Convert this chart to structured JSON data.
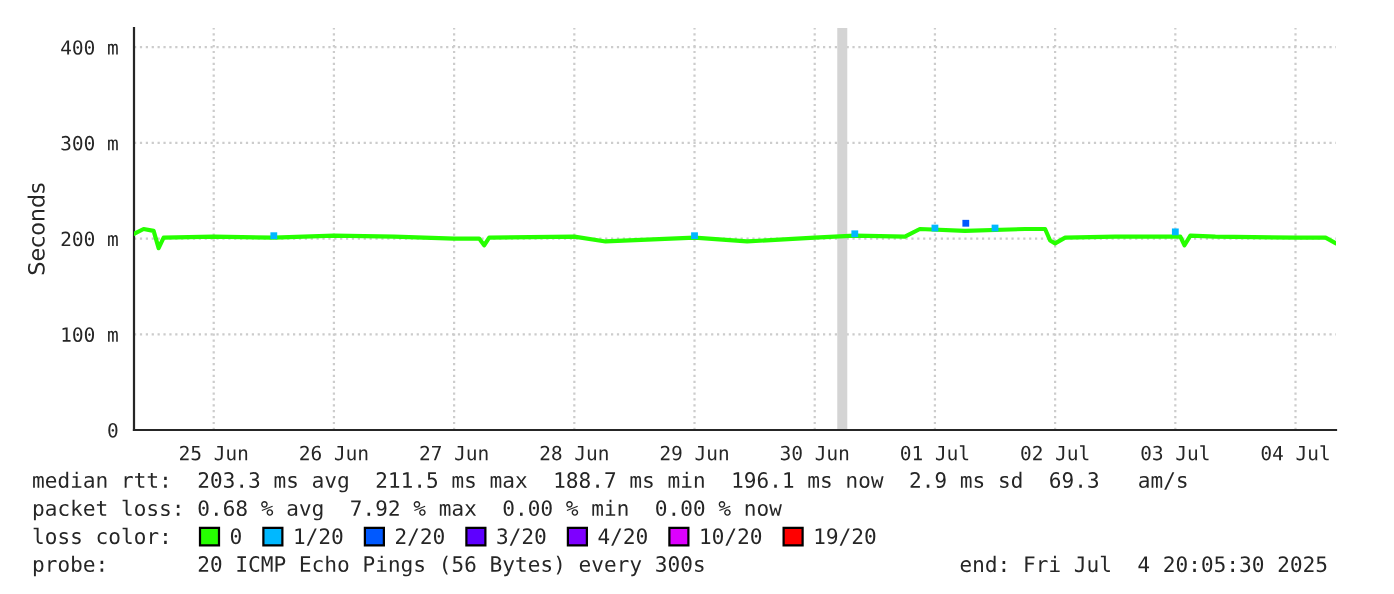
{
  "chart_data": {
    "type": "line",
    "ylabel": "Seconds",
    "legend_title": "loss color:",
    "annotations": [
      "median rtt:  203.3 ms avg  211.5 ms max  188.7 ms min  196.1 ms now  2.9 ms sd  69.3   am/s",
      "packet loss: 0.68 % avg  7.92 % max  0.00 % min  0.00 % now",
      "probe:       20 ICMP Echo Pings (56 Bytes) every 300s",
      "end: Fri Jul  4 20:05:30 2025"
    ],
    "xlim": [
      "2025-06-24T20:05",
      "2025-07-04T20:05"
    ],
    "xticks": [
      {
        "value": "2025-06-25T12:00",
        "label": "25 Jun"
      },
      {
        "value": "2025-06-26T12:00",
        "label": "26 Jun"
      },
      {
        "value": "2025-06-27T12:00",
        "label": "27 Jun"
      },
      {
        "value": "2025-06-28T12:00",
        "label": "28 Jun"
      },
      {
        "value": "2025-06-29T12:00",
        "label": "29 Jun"
      },
      {
        "value": "2025-06-30T12:00",
        "label": "30 Jun"
      },
      {
        "value": "2025-07-01T12:00",
        "label": "01 Jul"
      },
      {
        "value": "2025-07-02T12:00",
        "label": "02 Jul"
      },
      {
        "value": "2025-07-03T12:00",
        "label": "03 Jul"
      },
      {
        "value": "2025-07-04T12:00",
        "label": "04 Jul"
      }
    ],
    "ylim": [
      0,
      420
    ],
    "yticks": [
      0,
      {
        "value": 100,
        "label": "100 m"
      },
      {
        "value": 200,
        "label": "200 m"
      },
      {
        "value": 300,
        "label": "300 m"
      },
      {
        "value": 400,
        "label": "400 m"
      }
    ],
    "grid": true,
    "legend": "bottom",
    "bands": [
      {
        "axis": "x",
        "from": "2025-06-30T16:30",
        "to": "2025-06-30T18:30",
        "color": "#d4d4d4"
      }
    ],
    "series": [
      {
        "name": "0",
        "color": "#26ff00",
        "x": [
          "2025-06-24T20:05",
          "2025-06-24T22:00",
          "2025-06-25T00:00",
          "2025-06-25T01:00",
          "2025-06-25T02:00",
          "2025-06-25T12:00",
          "2025-06-26T00:00",
          "2025-06-26T12:00",
          "2025-06-27T00:00",
          "2025-06-27T12:00",
          "2025-06-27T17:00",
          "2025-06-27T18:00",
          "2025-06-27T19:00",
          "2025-06-28T12:00",
          "2025-06-28T18:15",
          "2025-06-29T12:00",
          "2025-06-29T22:30",
          "2025-06-30T12:00",
          "2025-06-30T20:00",
          "2025-07-01T06:00",
          "2025-07-01T09:00",
          "2025-07-01T18:00",
          "2025-07-02T06:00",
          "2025-07-02T10:00",
          "2025-07-02T11:00",
          "2025-07-02T12:00",
          "2025-07-02T14:00",
          "2025-07-03T00:00",
          "2025-07-03T13:00",
          "2025-07-03T13:50",
          "2025-07-03T15:00",
          "2025-07-03T20:00",
          "2025-07-04T12:00",
          "2025-07-04T18:00",
          "2025-07-04T20:05"
        ],
        "values": [
          205,
          210,
          208,
          190,
          201,
          202,
          201,
          203,
          202,
          200,
          200,
          193,
          201,
          202,
          197,
          201,
          197,
          201,
          203,
          202,
          210,
          208,
          210,
          210,
          198,
          195,
          201,
          202,
          202,
          193,
          203,
          202,
          201,
          201,
          195
        ]
      },
      {
        "name": "1/20",
        "color": "#00b8ff",
        "type": "scatter",
        "x": [
          "2025-06-26T00:00",
          "2025-06-29T12:00",
          "2025-06-30T20:00",
          "2025-07-01T12:00",
          "2025-07-02T00:00",
          "2025-07-03T12:00"
        ],
        "values": [
          203,
          203,
          205,
          211,
          211,
          207
        ]
      },
      {
        "name": "2/20",
        "color": "#0059ff",
        "type": "scatter",
        "x": [
          "2025-07-01T18:10"
        ],
        "values": [
          216
        ]
      },
      {
        "name": "3/20",
        "color": "#5e00ff",
        "type": "scatter"
      },
      {
        "name": "4/20",
        "color": "#7e00ff",
        "type": "scatter"
      },
      {
        "name": "10/20",
        "color": "#dd00ff",
        "type": "scatter"
      },
      {
        "name": "19/20",
        "color": "#ff0000",
        "type": "scatter"
      }
    ]
  }
}
